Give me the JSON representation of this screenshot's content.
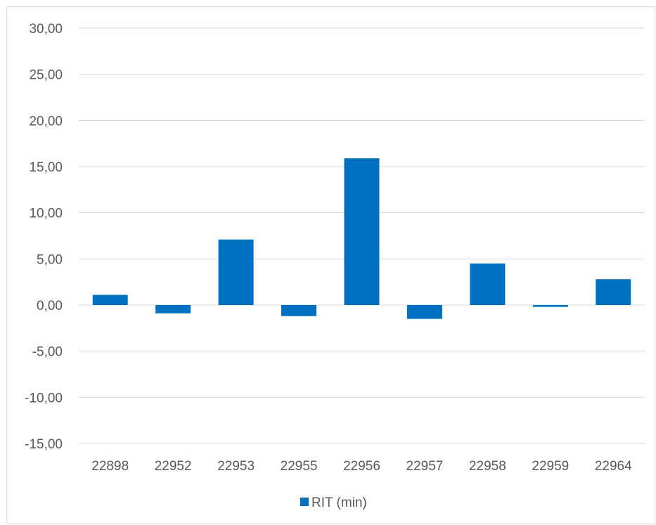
{
  "chart_data": {
    "type": "bar",
    "title": "",
    "xlabel": "",
    "ylabel": "",
    "categories": [
      "22898",
      "22952",
      "22953",
      "22955",
      "22956",
      "22957",
      "22958",
      "22959",
      "22964"
    ],
    "series": [
      {
        "name": "RIT (min)",
        "color": "#0070C0",
        "values": [
          1.1,
          -0.9,
          7.1,
          -1.2,
          15.9,
          -1.5,
          4.5,
          -0.2,
          2.8
        ]
      }
    ],
    "ylim": [
      -15,
      30
    ],
    "yticks": [
      30,
      25,
      20,
      15,
      10,
      5,
      0,
      -5,
      -10,
      -15
    ],
    "ytick_labels": [
      "30,00",
      "25,00",
      "20,00",
      "15,00",
      "10,00",
      "5,00",
      "0,00",
      "-5,00",
      "-10,00",
      "-15,00"
    ],
    "grid": true,
    "legend_position": "bottom"
  }
}
